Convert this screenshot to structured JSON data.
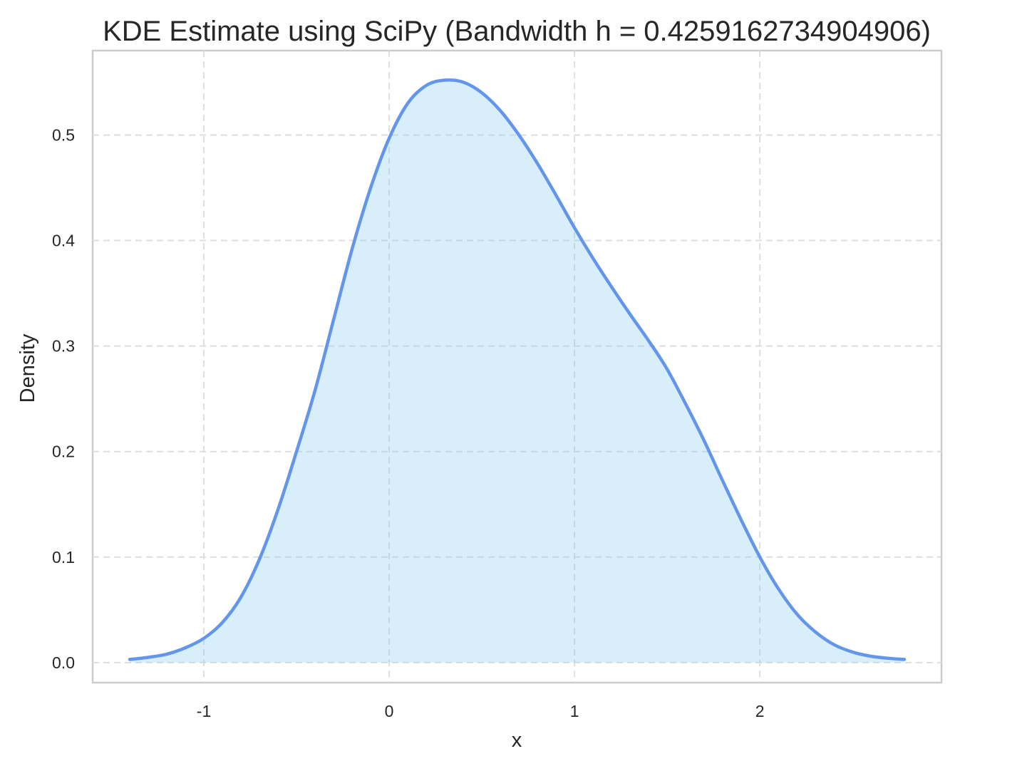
{
  "chart_data": {
    "type": "area",
    "title": "KDE Estimate using SciPy (Bandwidth h = 0.4259162734904906)",
    "xlabel": "x",
    "ylabel": "Density",
    "xlim": [
      -1.6,
      2.98
    ],
    "ylim": [
      -0.019,
      0.58
    ],
    "grid": true,
    "x_ticks": [
      {
        "value": -1,
        "label": "-1"
      },
      {
        "value": 0,
        "label": "0"
      },
      {
        "value": 1,
        "label": "1"
      },
      {
        "value": 2,
        "label": "2"
      }
    ],
    "y_ticks": [
      {
        "value": 0.0,
        "label": "0.0"
      },
      {
        "value": 0.1,
        "label": "0.1"
      },
      {
        "value": 0.2,
        "label": "0.2"
      },
      {
        "value": 0.3,
        "label": "0.3"
      },
      {
        "value": 0.4,
        "label": "0.4"
      },
      {
        "value": 0.5,
        "label": "0.5"
      }
    ],
    "line_color": "#6495ed",
    "fill_color": "#87ceeb",
    "series": [
      {
        "x": [
          -1.4,
          -1.3,
          -1.2,
          -1.1,
          -1.0,
          -0.9,
          -0.8,
          -0.7,
          -0.6,
          -0.5,
          -0.4,
          -0.3,
          -0.2,
          -0.1,
          0.0,
          0.1,
          0.2,
          0.3,
          0.4,
          0.5,
          0.6,
          0.7,
          0.8,
          0.9,
          1.0,
          1.1,
          1.2,
          1.3,
          1.4,
          1.5,
          1.6,
          1.7,
          1.8,
          1.9,
          2.0,
          2.1,
          2.2,
          2.3,
          2.4,
          2.5,
          2.6,
          2.7,
          2.78
        ],
        "y": [
          0.003,
          0.005,
          0.008,
          0.014,
          0.023,
          0.038,
          0.062,
          0.098,
          0.145,
          0.2,
          0.258,
          0.325,
          0.392,
          0.45,
          0.497,
          0.53,
          0.547,
          0.552,
          0.55,
          0.54,
          0.523,
          0.5,
          0.473,
          0.443,
          0.412,
          0.383,
          0.356,
          0.33,
          0.305,
          0.278,
          0.245,
          0.21,
          0.172,
          0.135,
          0.1,
          0.07,
          0.046,
          0.029,
          0.017,
          0.01,
          0.006,
          0.004,
          0.003
        ]
      }
    ]
  }
}
